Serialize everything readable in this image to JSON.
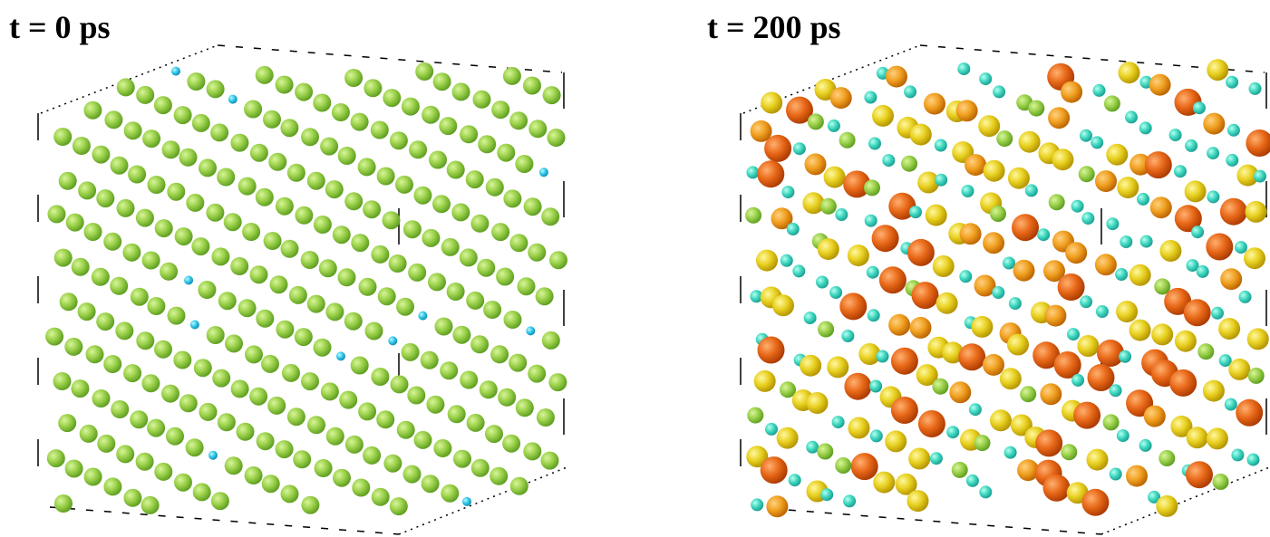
{
  "panels": [
    {
      "label": "t = 0 ps"
    },
    {
      "label": "t = 200 ps"
    }
  ]
}
